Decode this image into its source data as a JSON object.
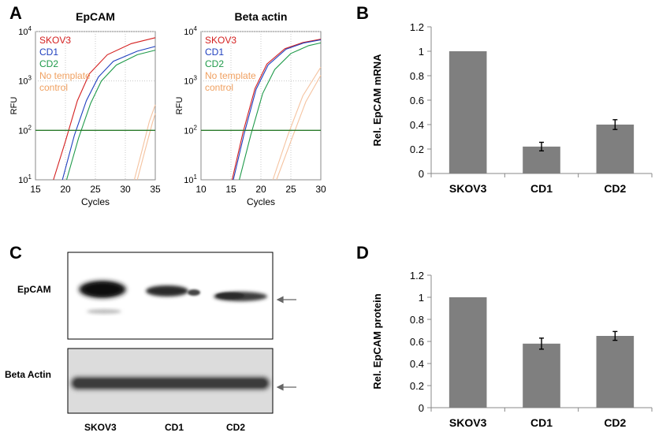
{
  "panels": {
    "a": "A",
    "b": "B",
    "c": "C",
    "d": "D"
  },
  "qpcr": {
    "x_label": "Cycles",
    "y_label": "RFU",
    "threshold": 100,
    "ylim": [
      10,
      10000
    ],
    "y_ticks": [
      {
        "value": 10,
        "base": "10",
        "exp": "1"
      },
      {
        "value": 100,
        "base": "10",
        "exp": "2"
      },
      {
        "value": 1000,
        "base": "10",
        "exp": "3"
      },
      {
        "value": 10000,
        "base": "10",
        "exp": "4"
      }
    ],
    "legend": [
      {
        "label": "SKOV3",
        "color": "#d42020"
      },
      {
        "label": "CD1",
        "color": "#1f3fbf"
      },
      {
        "label": "CD2",
        "color": "#1f9a4a"
      },
      {
        "label": "No template",
        "color": "#f0a060"
      },
      {
        "label": "control",
        "color": "#f0a060"
      }
    ],
    "plots": [
      {
        "title": "EpCAM",
        "xlim": [
          15,
          35
        ],
        "x_ticks": [
          "15",
          "20",
          "25",
          "30",
          "35"
        ],
        "curves": [
          {
            "color": "#d42020",
            "points": [
              [
                18,
                10
              ],
              [
                20,
                60
              ],
              [
                22,
                400
              ],
              [
                24,
                1400
              ],
              [
                27,
                3400
              ],
              [
                31,
                5700
              ],
              [
                35,
                7500
              ]
            ]
          },
          {
            "color": "#1f3fbf",
            "points": [
              [
                19.5,
                10
              ],
              [
                21.5,
                80
              ],
              [
                23.5,
                400
              ],
              [
                25.5,
                1200
              ],
              [
                28,
                2500
              ],
              [
                32,
                4000
              ],
              [
                35,
                5000
              ]
            ]
          },
          {
            "color": "#1f9a4a",
            "points": [
              [
                20.2,
                10
              ],
              [
                22.2,
                70
              ],
              [
                24.2,
                350
              ],
              [
                26,
                1000
              ],
              [
                28.5,
                2100
              ],
              [
                32,
                3400
              ],
              [
                35,
                4200
              ]
            ]
          },
          {
            "color": "#f5c3a0",
            "points": [
              [
                31.5,
                10
              ],
              [
                32.8,
                40
              ],
              [
                34,
                150
              ],
              [
                35,
                330
              ]
            ]
          },
          {
            "color": "#f5c3a0",
            "points": [
              [
                32,
                10
              ],
              [
                33.3,
                40
              ],
              [
                34.5,
                140
              ],
              [
                35,
                220
              ]
            ]
          }
        ]
      },
      {
        "title": "Beta actin",
        "xlim": [
          10,
          30
        ],
        "x_ticks": [
          "10",
          "15",
          "20",
          "25",
          "30"
        ],
        "curves": [
          {
            "color": "#d42020",
            "points": [
              [
                15.2,
                10
              ],
              [
                17,
                90
              ],
              [
                19,
                700
              ],
              [
                21,
                2200
              ],
              [
                24,
                4500
              ],
              [
                27,
                6000
              ],
              [
                30,
                7000
              ]
            ]
          },
          {
            "color": "#1f3fbf",
            "points": [
              [
                15.4,
                10
              ],
              [
                17.2,
                85
              ],
              [
                19.2,
                680
              ],
              [
                21.2,
                2100
              ],
              [
                24.2,
                4400
              ],
              [
                27.2,
                5900
              ],
              [
                30,
                6800
              ]
            ]
          },
          {
            "color": "#1f9a4a",
            "points": [
              [
                16.4,
                10
              ],
              [
                18.3,
                80
              ],
              [
                20.3,
                560
              ],
              [
                22.3,
                1700
              ],
              [
                25,
                3600
              ],
              [
                28,
                5200
              ],
              [
                30,
                5900
              ]
            ]
          },
          {
            "color": "#f5c3a0",
            "points": [
              [
                22,
                10
              ],
              [
                24.5,
                80
              ],
              [
                27,
                500
              ],
              [
                30,
                1900
              ]
            ]
          },
          {
            "color": "#f5c3a0",
            "points": [
              [
                22.6,
                10
              ],
              [
                25,
                60
              ],
              [
                27.5,
                380
              ],
              [
                30,
                1300
              ]
            ]
          }
        ]
      }
    ]
  },
  "chart_data": [
    {
      "type": "bar",
      "categories": [
        "SKOV3",
        "CD1",
        "CD2"
      ],
      "values": [
        1,
        0.22,
        0.4
      ],
      "errors": [
        0,
        0.035,
        0.04
      ],
      "ylabel": "Rel. EpCAM mRNA",
      "ylim": [
        0,
        1.2
      ],
      "y_ticks": [
        "0",
        "0.2",
        "0.4",
        "0.6",
        "0.8",
        "1",
        "1.2"
      ],
      "bar_color": "#7f7f7f"
    },
    {
      "type": "bar",
      "categories": [
        "SKOV3",
        "CD1",
        "CD2"
      ],
      "values": [
        1,
        0.58,
        0.65
      ],
      "errors": [
        0,
        0.05,
        0.04
      ],
      "ylabel": "Rel. EpCAM protein",
      "ylim": [
        0,
        1.2
      ],
      "y_ticks": [
        "0",
        "0.2",
        "0.4",
        "0.6",
        "0.8",
        "1",
        "1.2"
      ],
      "bar_color": "#7f7f7f"
    }
  ],
  "western": {
    "rows": [
      "EpCAM",
      "Beta Actin"
    ],
    "lanes": [
      "SKOV3",
      "CD1",
      "CD2"
    ]
  }
}
